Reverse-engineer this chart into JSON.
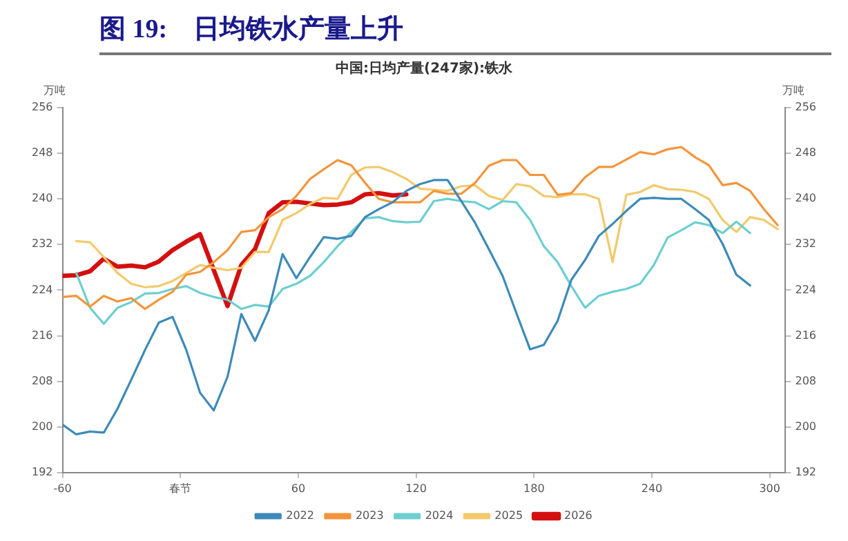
{
  "chart_data": {
    "type": "line",
    "title": "图 19:    日均铁水产量上升",
    "subtitle": "中国:日均产量(247家):铁水",
    "ylabel": "万吨",
    "y2label": "万吨",
    "x": [
      -60,
      -53,
      -46,
      -39,
      -32,
      -25,
      -18,
      -11,
      -4,
      3,
      10,
      17,
      24,
      31,
      38,
      45,
      52,
      59,
      66,
      73,
      80,
      87,
      94,
      101,
      108,
      115,
      122,
      129,
      136,
      143,
      150,
      157,
      164,
      171,
      178,
      185,
      192,
      199,
      206,
      213,
      220,
      227,
      234,
      241,
      248,
      255,
      262,
      269,
      276,
      283,
      290,
      297,
      304
    ],
    "series": [
      {
        "name": "2022",
        "color": "#3d8ab8",
        "values": [
          200.4,
          198.7,
          199.2,
          199,
          203.2,
          208.3,
          213.5,
          218.3,
          219.3,
          213.5,
          206,
          202.9,
          208.8,
          219.8,
          215.1,
          220.5,
          230.3,
          226.1,
          229.8,
          233.3,
          233,
          233.5,
          236.8,
          238.2,
          239.4,
          241.4,
          242.6,
          243.3,
          243.3,
          239.6,
          235.8,
          231.2,
          226.5,
          220,
          213.6,
          214.4,
          218.6,
          225.8,
          229.3,
          233.5,
          235.6,
          237.9,
          240,
          240.2,
          240,
          240,
          238.2,
          236.3,
          232.1,
          226.7,
          224.8,
          null,
          null
        ]
      },
      {
        "name": "2023",
        "color": "#f4943a",
        "values": [
          222.8,
          223,
          221.1,
          223,
          222,
          222.6,
          220.7,
          222.3,
          223.7,
          226.7,
          227.2,
          228.9,
          231,
          234.2,
          234.5,
          236.8,
          238.2,
          240.5,
          243.5,
          245.2,
          246.8,
          245.9,
          242.8,
          240,
          239.4,
          239.4,
          239.4,
          241.4,
          240.9,
          240.9,
          242.8,
          245.8,
          246.8,
          246.8,
          244.2,
          244.2,
          240.7,
          241,
          243.8,
          245.6,
          245.6,
          246.9,
          248.2,
          247.8,
          248.7,
          249.1,
          247.3,
          245.9,
          242.4,
          242.8,
          241.4,
          238.2,
          235.4
        ]
      },
      {
        "name": "2024",
        "color": "#6dcfcf",
        "values": [
          null,
          227,
          220.9,
          218.1,
          220.9,
          221.9,
          223.4,
          223.5,
          224.2,
          224.7,
          223.5,
          222.8,
          222.3,
          220.7,
          221.4,
          221.1,
          224.2,
          225.1,
          226.5,
          228.9,
          231.7,
          234.2,
          236.6,
          236.8,
          236.1,
          235.9,
          236,
          239.6,
          240,
          239.6,
          239.4,
          238.2,
          239.6,
          239.4,
          236.3,
          231.7,
          228.9,
          224.7,
          220.9,
          223,
          223.7,
          224.2,
          225.1,
          228.4,
          233.2,
          234.5,
          235.9,
          235.4,
          234,
          236,
          234,
          null,
          null
        ]
      },
      {
        "name": "2025",
        "color": "#f2c96b",
        "values": [
          null,
          232.6,
          232.4,
          229.8,
          227,
          225.1,
          224.5,
          224.7,
          225.6,
          227,
          228.4,
          227.9,
          227.5,
          227.9,
          230.7,
          230.7,
          236.3,
          237.5,
          239.1,
          240.2,
          240,
          244.2,
          245.5,
          245.6,
          244.7,
          243.5,
          241.8,
          241.6,
          241.4,
          242.2,
          242.4,
          240.5,
          239.8,
          242.6,
          242.2,
          240.5,
          240.3,
          240.8,
          240.8,
          240,
          228.9,
          240.7,
          241.2,
          242.4,
          241.7,
          241.6,
          241.2,
          240,
          236.3,
          234.2,
          236.8,
          236.3,
          234.7
        ]
      },
      {
        "name": "2026",
        "color": "#d40f0f",
        "x": [
          -60,
          -53,
          -46,
          -39,
          -32,
          -25,
          -18,
          -11,
          -4,
          3,
          10,
          24,
          31,
          38,
          45,
          52,
          59,
          66,
          73,
          80,
          87,
          94,
          101,
          108,
          115
        ],
        "values": [
          226.5,
          226.6,
          227.3,
          229.5,
          228.1,
          228.3,
          228,
          229,
          231,
          232.5,
          233.8,
          221.2,
          228.4,
          231.2,
          237.5,
          239.4,
          239.5,
          239.2,
          238.9,
          239,
          239.4,
          240.8,
          241,
          240.6,
          240.8
        ]
      }
    ],
    "xlim": [
      -60,
      308
    ],
    "xticks": [
      -60,
      {
        "value": 0,
        "label": "春节"
      },
      60,
      120,
      180,
      240,
      300
    ],
    "ylim": [
      192,
      256
    ],
    "yticks": [
      192,
      200,
      208,
      216,
      224,
      232,
      240,
      248,
      256
    ],
    "y2lim": [
      192,
      256
    ],
    "y2ticks": [
      192,
      200,
      208,
      216,
      224,
      232,
      240,
      248,
      256
    ],
    "grid": false,
    "legend": "bottom",
    "marker": "none",
    "line_style": "solid"
  }
}
